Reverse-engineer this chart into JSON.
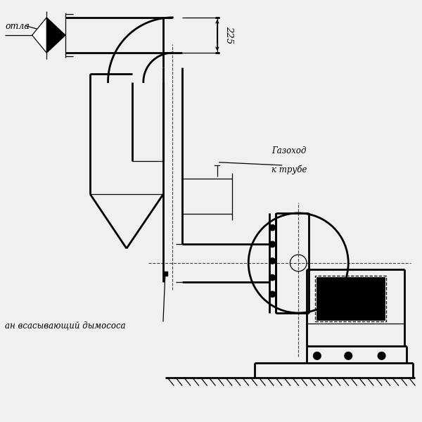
{
  "bg_color": "#f0f0f0",
  "line_color": "#000000",
  "label_kotla": "отла",
  "label_gazokhod_1": "Газоход",
  "label_gazokhod_2": "к трубе",
  "label_dymosos": "ан всасывающий дымососа",
  "dim_225": "225",
  "lw_main": 2.0,
  "lw_thin": 0.9,
  "lw_dashed": 0.8
}
